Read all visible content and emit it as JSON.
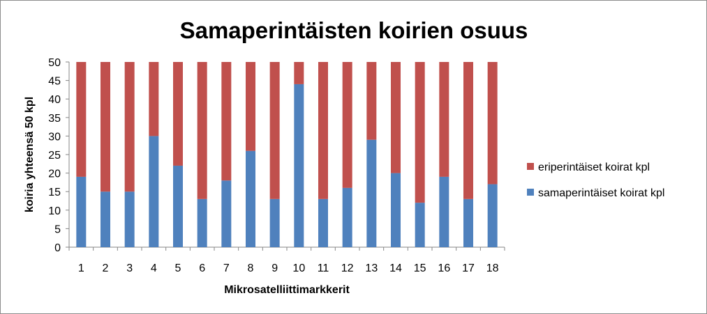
{
  "chart_data": {
    "type": "bar",
    "stacked": true,
    "title": "Samaperintäisten koirien osuus",
    "xlabel": "Mikrosatelliittimarkkerit",
    "ylabel": "koiria yhteensä 50 kpl",
    "ylim": [
      0,
      50
    ],
    "yticks": [
      0,
      5,
      10,
      15,
      20,
      25,
      30,
      35,
      40,
      45,
      50
    ],
    "grid": false,
    "legend_position": "right",
    "categories": [
      "1",
      "2",
      "3",
      "4",
      "5",
      "6",
      "7",
      "8",
      "9",
      "10",
      "11",
      "12",
      "13",
      "14",
      "15",
      "16",
      "17",
      "18"
    ],
    "series": [
      {
        "name": "samaperintäiset koirat kpl",
        "color": "#4f81bd",
        "values": [
          19,
          15,
          15,
          30,
          22,
          13,
          18,
          26,
          13,
          44,
          13,
          16,
          29,
          20,
          12,
          19,
          13,
          17
        ]
      },
      {
        "name": "eriperintäiset koirat kpl",
        "color": "#c0504d",
        "values": [
          31,
          35,
          35,
          20,
          28,
          37,
          32,
          24,
          37,
          6,
          37,
          34,
          21,
          30,
          38,
          31,
          37,
          33
        ]
      }
    ],
    "legend_order": [
      1,
      0
    ]
  }
}
